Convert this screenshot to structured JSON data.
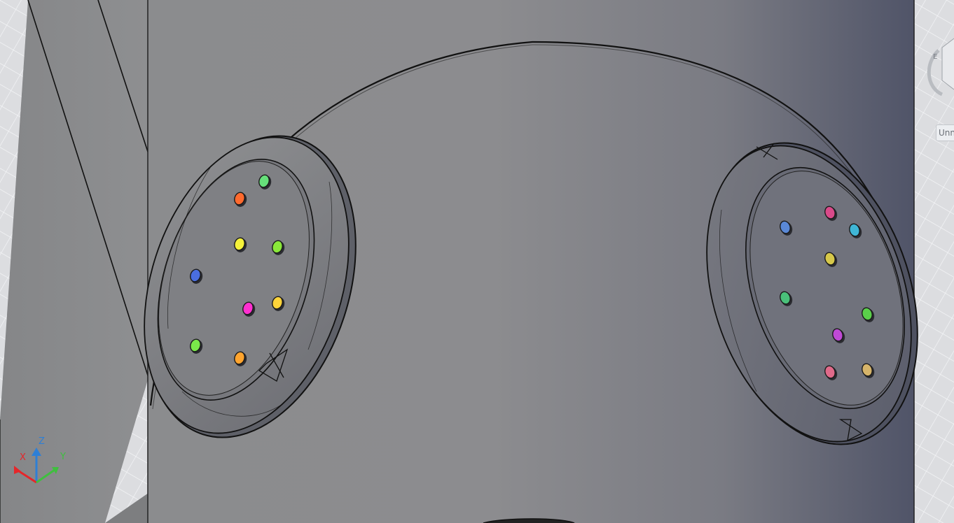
{
  "viewcube": {
    "label": "Unn"
  },
  "ucs": {
    "x_label": "X",
    "y_label": "Y",
    "z_label": "Z"
  },
  "colors": {
    "x_axis": "#e5262a",
    "y_axis": "#3fbf3f",
    "z_axis": "#2e7fd6",
    "model_body": "#8a8b8d",
    "edge_lines": "#111111",
    "grid_background": "#dcdde0"
  },
  "left_flange_holes": [
    "#66e07a",
    "#ff6a2e",
    "#f5f23a",
    "#8ae83a",
    "#4a6ee0",
    "#ff30d0",
    "#ffd43a",
    "#7ae84a",
    "#ffa42e"
  ],
  "right_flange_holes": [
    "#d94a8a",
    "#3fb6d6",
    "#5a88d6",
    "#d6c84a",
    "#4ac07a",
    "#5ad04a",
    "#c04ad6",
    "#e06a8a",
    "#d6b46a"
  ]
}
